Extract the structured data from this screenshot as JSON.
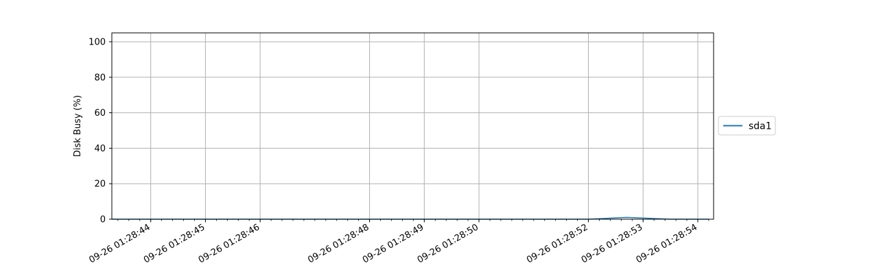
{
  "chart_data": {
    "type": "line",
    "title": "",
    "xlabel": "",
    "ylabel": "Disk Busy (%)",
    "ylim": [
      0,
      105
    ],
    "yticks": [
      0,
      20,
      40,
      60,
      80,
      100
    ],
    "xlim": [
      "2023-09-26 01:28:43.600",
      "2023-09-26 01:28:54.600"
    ],
    "xticks": [
      {
        "label": "09-26 01:28:44",
        "x": "2023-09-26 01:28:44.311"
      },
      {
        "label": "09-26 01:28:45",
        "x": "2023-09-26 01:28:45.311"
      },
      {
        "label": "09-26 01:28:46",
        "x": "2023-09-26 01:28:46.311"
      },
      {
        "label": "09-26 01:28:48",
        "x": "2023-09-26 01:28:48.311"
      },
      {
        "label": "09-26 01:28:49",
        "x": "2023-09-26 01:28:49.311"
      },
      {
        "label": "09-26 01:28:50",
        "x": "2023-09-26 01:28:50.311"
      },
      {
        "label": "09-26 01:28:52",
        "x": "2023-09-26 01:28:52.311"
      },
      {
        "label": "09-26 01:28:53",
        "x": "2023-09-26 01:28:53.311"
      },
      {
        "label": "09-26 01:28:54",
        "x": "2023-09-26 01:28:54.311"
      }
    ],
    "grid": true,
    "legend_position": "center-right",
    "series": [
      {
        "name": "sda1",
        "color": "#1f77b4",
        "x": [
          "2023-09-26 01:28:43.600",
          "2023-09-26 01:28:44.311",
          "2023-09-26 01:28:45.311",
          "2023-09-26 01:28:46.311",
          "2023-09-26 01:28:47.311",
          "2023-09-26 01:28:48.311",
          "2023-09-26 01:28:49.311",
          "2023-09-26 01:28:50.311",
          "2023-09-26 01:28:51.311",
          "2023-09-26 01:28:52.311",
          "2023-09-26 01:28:53.011",
          "2023-09-26 01:28:53.811",
          "2023-09-26 01:28:54.311",
          "2023-09-26 01:28:54.511"
        ],
        "values": [
          0,
          0,
          0,
          0,
          0,
          0,
          0,
          0,
          0,
          0,
          1,
          0,
          0,
          0
        ]
      }
    ]
  }
}
